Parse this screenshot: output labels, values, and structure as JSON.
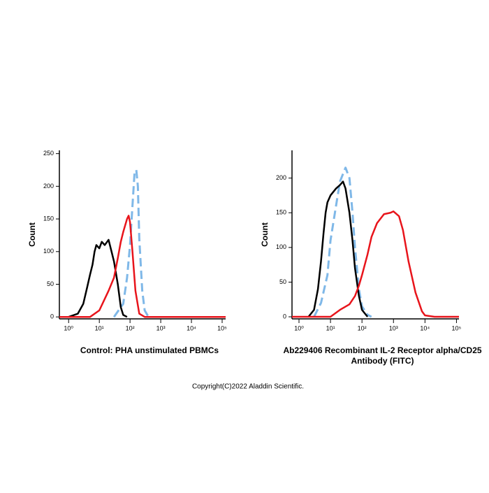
{
  "chart_data": [
    {
      "type": "line",
      "title": [
        "Control: PHA unstimulated PBMCs"
      ],
      "ylabel": "Count",
      "xscale": "log",
      "xlim": [
        0.5,
        130000
      ],
      "ylim": [
        -3,
        255
      ],
      "xticks": [
        {
          "value": 1,
          "label": "10⁰"
        },
        {
          "value": 10,
          "label": "10¹"
        },
        {
          "value": 100,
          "label": "10²"
        },
        {
          "value": 1000,
          "label": "10³"
        },
        {
          "value": 10000,
          "label": "10⁴"
        },
        {
          "value": 100000,
          "label": "10⁵"
        }
      ],
      "yticks": [
        0,
        50,
        100,
        150,
        200,
        250
      ],
      "series": [
        {
          "color": "#7fb8e8",
          "dash": true,
          "x": [
            30,
            60,
            80,
            100,
            120,
            140,
            160,
            180,
            200,
            250,
            300,
            400
          ],
          "values": [
            0,
            20,
            60,
            110,
            170,
            220,
            225,
            200,
            120,
            40,
            10,
            0
          ]
        },
        {
          "color": "#000000",
          "dash": false,
          "x": [
            1,
            2,
            3,
            4,
            5,
            6,
            7,
            8,
            10,
            12,
            15,
            20,
            25,
            30,
            40,
            50,
            60,
            80
          ],
          "values": [
            0,
            5,
            20,
            45,
            65,
            80,
            100,
            110,
            105,
            115,
            110,
            118,
            100,
            85,
            50,
            15,
            3,
            0
          ]
        },
        {
          "color": "#e8141b",
          "dash": false,
          "x": [
            0.5,
            5,
            10,
            20,
            30,
            40,
            50,
            60,
            80,
            90,
            100,
            120,
            150,
            200,
            300,
            130000
          ],
          "values": [
            0,
            0,
            10,
            40,
            60,
            90,
            115,
            130,
            150,
            155,
            145,
            100,
            40,
            5,
            0,
            0
          ]
        }
      ]
    },
    {
      "type": "line",
      "title": [
        "Ab229406 Recombinant IL-2 Receptor alpha/CD25",
        "Antibody (FITC)"
      ],
      "ylabel": "Count",
      "xscale": "log",
      "xlim": [
        0.6,
        120000
      ],
      "ylim": [
        -3,
        240
      ],
      "xticks": [
        {
          "value": 1,
          "label": "10⁰"
        },
        {
          "value": 10,
          "label": "10¹"
        },
        {
          "value": 100,
          "label": "10²"
        },
        {
          "value": 1000,
          "label": "10³"
        },
        {
          "value": 10000,
          "label": "10⁴"
        },
        {
          "value": 100000,
          "label": "10⁵"
        }
      ],
      "yticks": [
        0,
        50,
        100,
        150,
        200
      ],
      "series": [
        {
          "color": "#7fb8e8",
          "dash": true,
          "x": [
            3,
            5,
            8,
            10,
            15,
            20,
            30,
            40,
            50,
            60,
            80,
            100,
            150,
            200
          ],
          "values": [
            0,
            20,
            60,
            110,
            160,
            195,
            215,
            200,
            150,
            100,
            40,
            15,
            3,
            0
          ]
        },
        {
          "color": "#000000",
          "dash": false,
          "x": [
            2,
            3,
            4,
            5,
            6,
            7,
            8,
            10,
            15,
            20,
            25,
            30,
            40,
            50,
            60,
            80,
            100,
            150
          ],
          "values": [
            0,
            10,
            40,
            80,
            120,
            150,
            165,
            175,
            185,
            190,
            195,
            185,
            150,
            110,
            70,
            30,
            10,
            0
          ]
        },
        {
          "color": "#e8141b",
          "dash": false,
          "x": [
            0.6,
            10,
            20,
            40,
            60,
            80,
            100,
            150,
            200,
            300,
            500,
            800,
            1000,
            1500,
            2000,
            3000,
            5000,
            8000,
            10000,
            20000,
            120000
          ],
          "values": [
            0,
            0,
            10,
            18,
            30,
            45,
            60,
            90,
            115,
            135,
            148,
            150,
            152,
            145,
            125,
            80,
            35,
            8,
            2,
            0,
            0
          ]
        }
      ]
    }
  ],
  "footer": "Copyright(C)2022 Aladdin Scientific."
}
